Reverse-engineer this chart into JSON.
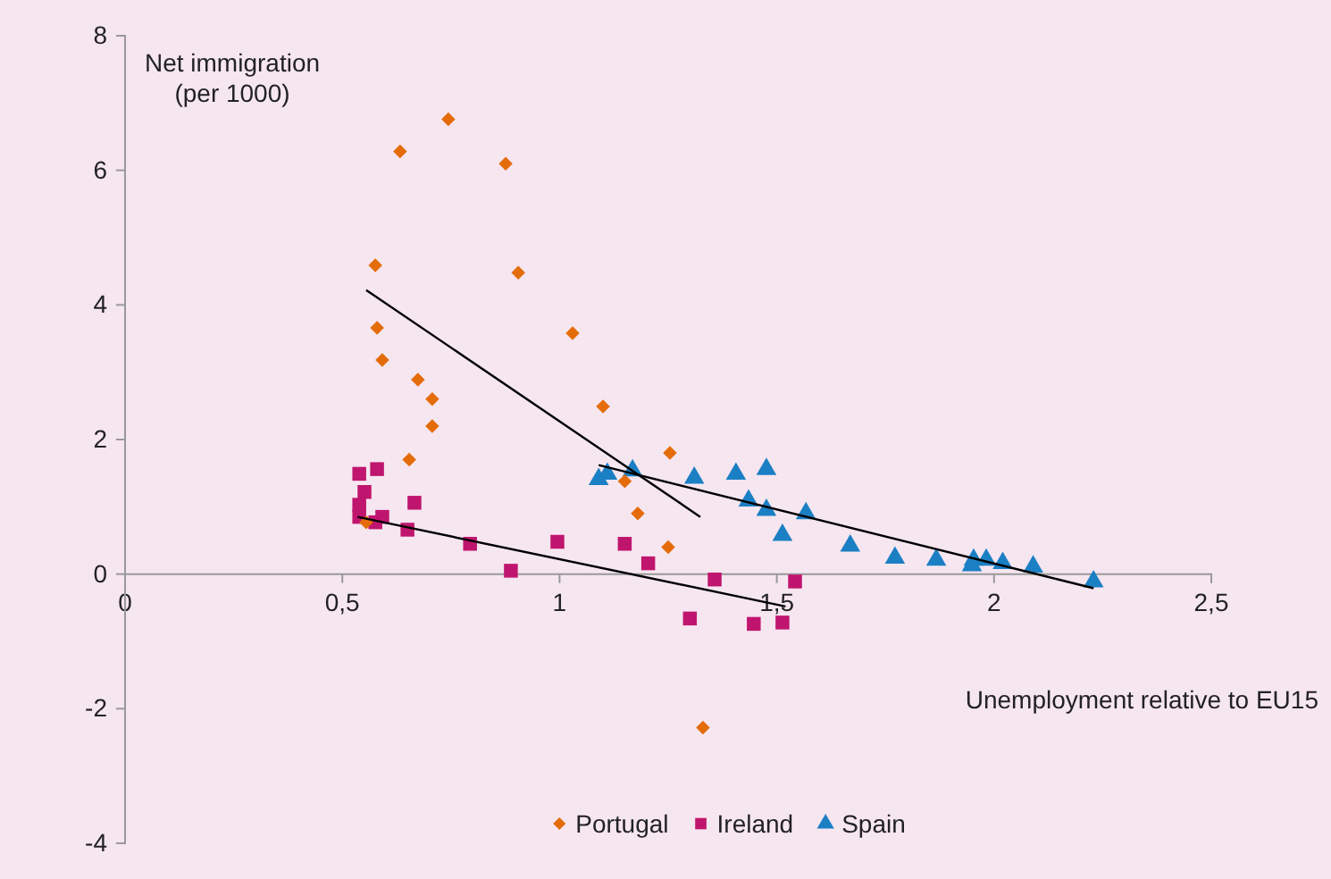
{
  "chart_data": {
    "type": "scatter",
    "ylabel": "Net immigration\n(per 1000)",
    "xlabel": "Unemployment relative to EU15",
    "xlim": [
      0,
      2.5
    ],
    "ylim": [
      -4,
      8
    ],
    "xticks": [
      0,
      {
        "value": 0.5,
        "label": "0,5"
      },
      1,
      {
        "value": 1.5,
        "label": "1,5"
      },
      2,
      {
        "value": 2.5,
        "label": "2,5"
      }
    ],
    "yticks": [
      -4,
      -2,
      0,
      2,
      4,
      6,
      8
    ],
    "grid": false,
    "legend": "bottom",
    "series": [
      {
        "name": "Portugal",
        "color": "#e46c0a",
        "marker": "diamond",
        "x": [
          0.744,
          0.633,
          0.876,
          0.576,
          0.905,
          1.03,
          0.58,
          0.592,
          0.674,
          0.707,
          0.707,
          0.654,
          1.1,
          1.254,
          1.15,
          1.18,
          1.25,
          1.33,
          0.555
        ],
        "values": [
          6.76,
          6.28,
          6.1,
          4.59,
          4.48,
          3.58,
          3.66,
          3.18,
          2.89,
          2.6,
          2.2,
          1.7,
          2.49,
          1.8,
          1.38,
          0.9,
          0.4,
          -2.28,
          0.77
        ]
      },
      {
        "name": "Ireland",
        "color": "#c0156e",
        "marker": "square",
        "x": [
          0.539,
          0.58,
          0.551,
          0.539,
          0.539,
          0.576,
          0.592,
          0.666,
          0.65,
          0.794,
          0.995,
          0.888,
          1.15,
          1.204,
          1.357,
          1.3,
          1.447,
          1.513,
          1.542
        ],
        "values": [
          1.49,
          1.56,
          1.22,
          1.03,
          0.85,
          0.77,
          0.85,
          1.06,
          0.66,
          0.45,
          0.48,
          0.05,
          0.45,
          0.16,
          -0.08,
          -0.66,
          -0.74,
          -0.72,
          -0.11
        ]
      },
      {
        "name": "Spain",
        "color": "#1b7fc4",
        "marker": "triangle",
        "x": [
          1.09,
          1.11,
          1.168,
          1.31,
          1.406,
          1.476,
          1.435,
          1.476,
          1.513,
          1.567,
          1.669,
          1.772,
          1.867,
          1.949,
          1.953,
          1.982,
          2.02,
          2.09,
          2.229
        ],
        "values": [
          1.41,
          1.49,
          1.54,
          1.43,
          1.49,
          1.56,
          1.09,
          0.95,
          0.58,
          0.9,
          0.42,
          0.24,
          0.21,
          0.13,
          0.21,
          0.21,
          0.16,
          0.11,
          -0.11
        ]
      },
      {
        "type": "line",
        "color": "#000000",
        "x": [
          0.555,
          1.324
        ],
        "values": [
          4.22,
          0.85
        ]
      },
      {
        "type": "line",
        "color": "#000000",
        "x": [
          0.535,
          1.52
        ],
        "values": [
          0.85,
          -0.48
        ]
      },
      {
        "type": "line",
        "color": "#000000",
        "x": [
          1.09,
          2.229
        ],
        "values": [
          1.62,
          -0.21
        ]
      }
    ]
  }
}
